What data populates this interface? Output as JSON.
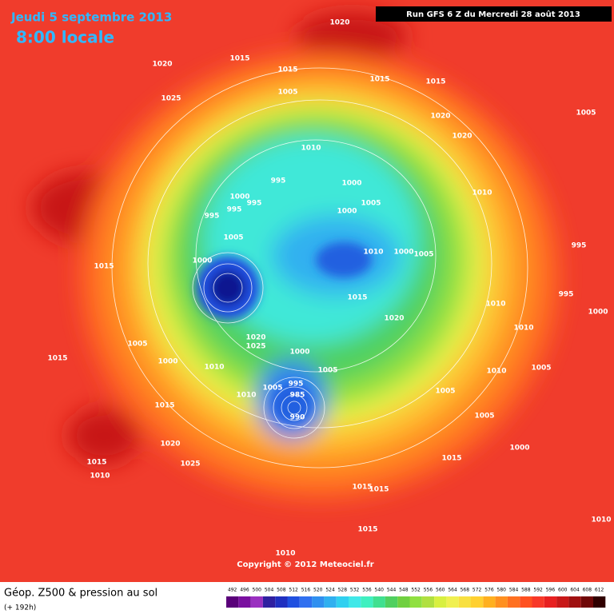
{
  "header": {
    "date": "Jeudi 5 septembre 2013",
    "time": "8:00 locale",
    "run": "Run GFS 6 Z du Mercredi 28 août 2013"
  },
  "isobar_labels": [
    "1020",
    "1015",
    "1015",
    "1015",
    "1015",
    "1020",
    "1025",
    "1005",
    "1020",
    "1005",
    "1020",
    "1010",
    "995",
    "1000",
    "1000",
    "995",
    "995",
    "1005",
    "1000",
    "1010",
    "995",
    "1005",
    "1015",
    "1000",
    "1010",
    "1000",
    "1005",
    "995",
    "995",
    "1000",
    "1015",
    "1010",
    "1020",
    "1010",
    "1020",
    "1025",
    "1005",
    "1000",
    "1000",
    "1010",
    "1005",
    "995",
    "1010",
    "1005",
    "1015",
    "1005",
    "985",
    "1010",
    "1005",
    "1015",
    "990",
    "1005",
    "1020",
    "1000",
    "1025",
    "1015",
    "1010",
    "1015",
    "1015",
    "1015",
    "1015",
    "1010",
    "1010"
  ],
  "copyright": "Copyright © 2012 Meteociel.fr",
  "footer": {
    "title": "Géop. Z500 & pression au sol",
    "lead": "(+ 192h)"
  },
  "colorbar": {
    "values": [
      492,
      496,
      500,
      504,
      508,
      512,
      516,
      520,
      524,
      528,
      532,
      536,
      540,
      544,
      548,
      552,
      556,
      560,
      564,
      568,
      572,
      576,
      580,
      584,
      588,
      592,
      596,
      600,
      604,
      608,
      612
    ],
    "colors": [
      "#5a007a",
      "#7a10a0",
      "#9a30c0",
      "#3020a0",
      "#2030c0",
      "#2050e0",
      "#3070f0",
      "#3090f0",
      "#30b0f0",
      "#30d0f0",
      "#40e8e8",
      "#40f0c0",
      "#40e090",
      "#50d060",
      "#70d040",
      "#90e040",
      "#b0e040",
      "#d8f040",
      "#f0f050",
      "#f8e040",
      "#ffd030",
      "#ffb020",
      "#ff9020",
      "#ff7020",
      "#ff5020",
      "#f83828",
      "#e82020",
      "#c81818",
      "#a01010",
      "#700808",
      "#300000"
    ]
  }
}
